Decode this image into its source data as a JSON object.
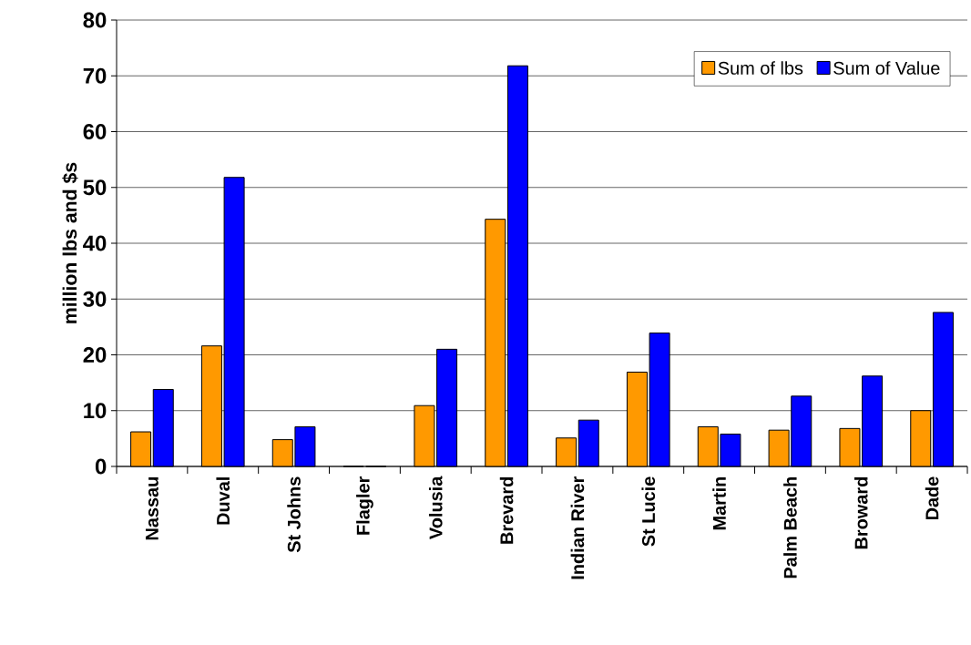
{
  "chart_data": {
    "type": "bar",
    "categories": [
      "Nassau",
      "Duval",
      "St Johns",
      "Flagler",
      "Volusia",
      "Brevard",
      "Indian River",
      "St Lucie",
      "Martin",
      "Palm Beach",
      "Broward",
      "Dade"
    ],
    "series": [
      {
        "name": "Sum of lbs",
        "color": "#ff9900",
        "values": [
          6.2,
          21.6,
          4.8,
          0,
          10.9,
          44.3,
          5.1,
          16.9,
          7.1,
          6.5,
          6.8,
          10.0
        ]
      },
      {
        "name": "Sum of Value",
        "color": "#0000ff",
        "values": [
          13.8,
          51.8,
          7.1,
          0,
          21.0,
          71.8,
          8.3,
          23.9,
          5.8,
          12.6,
          16.2,
          27.6
        ]
      }
    ],
    "ylabel": "million lbs and $s",
    "ylim": [
      0,
      80
    ],
    "yticks": [
      0,
      10,
      20,
      30,
      40,
      50,
      60,
      70,
      80
    ],
    "grid": "y",
    "legend": "top right"
  }
}
